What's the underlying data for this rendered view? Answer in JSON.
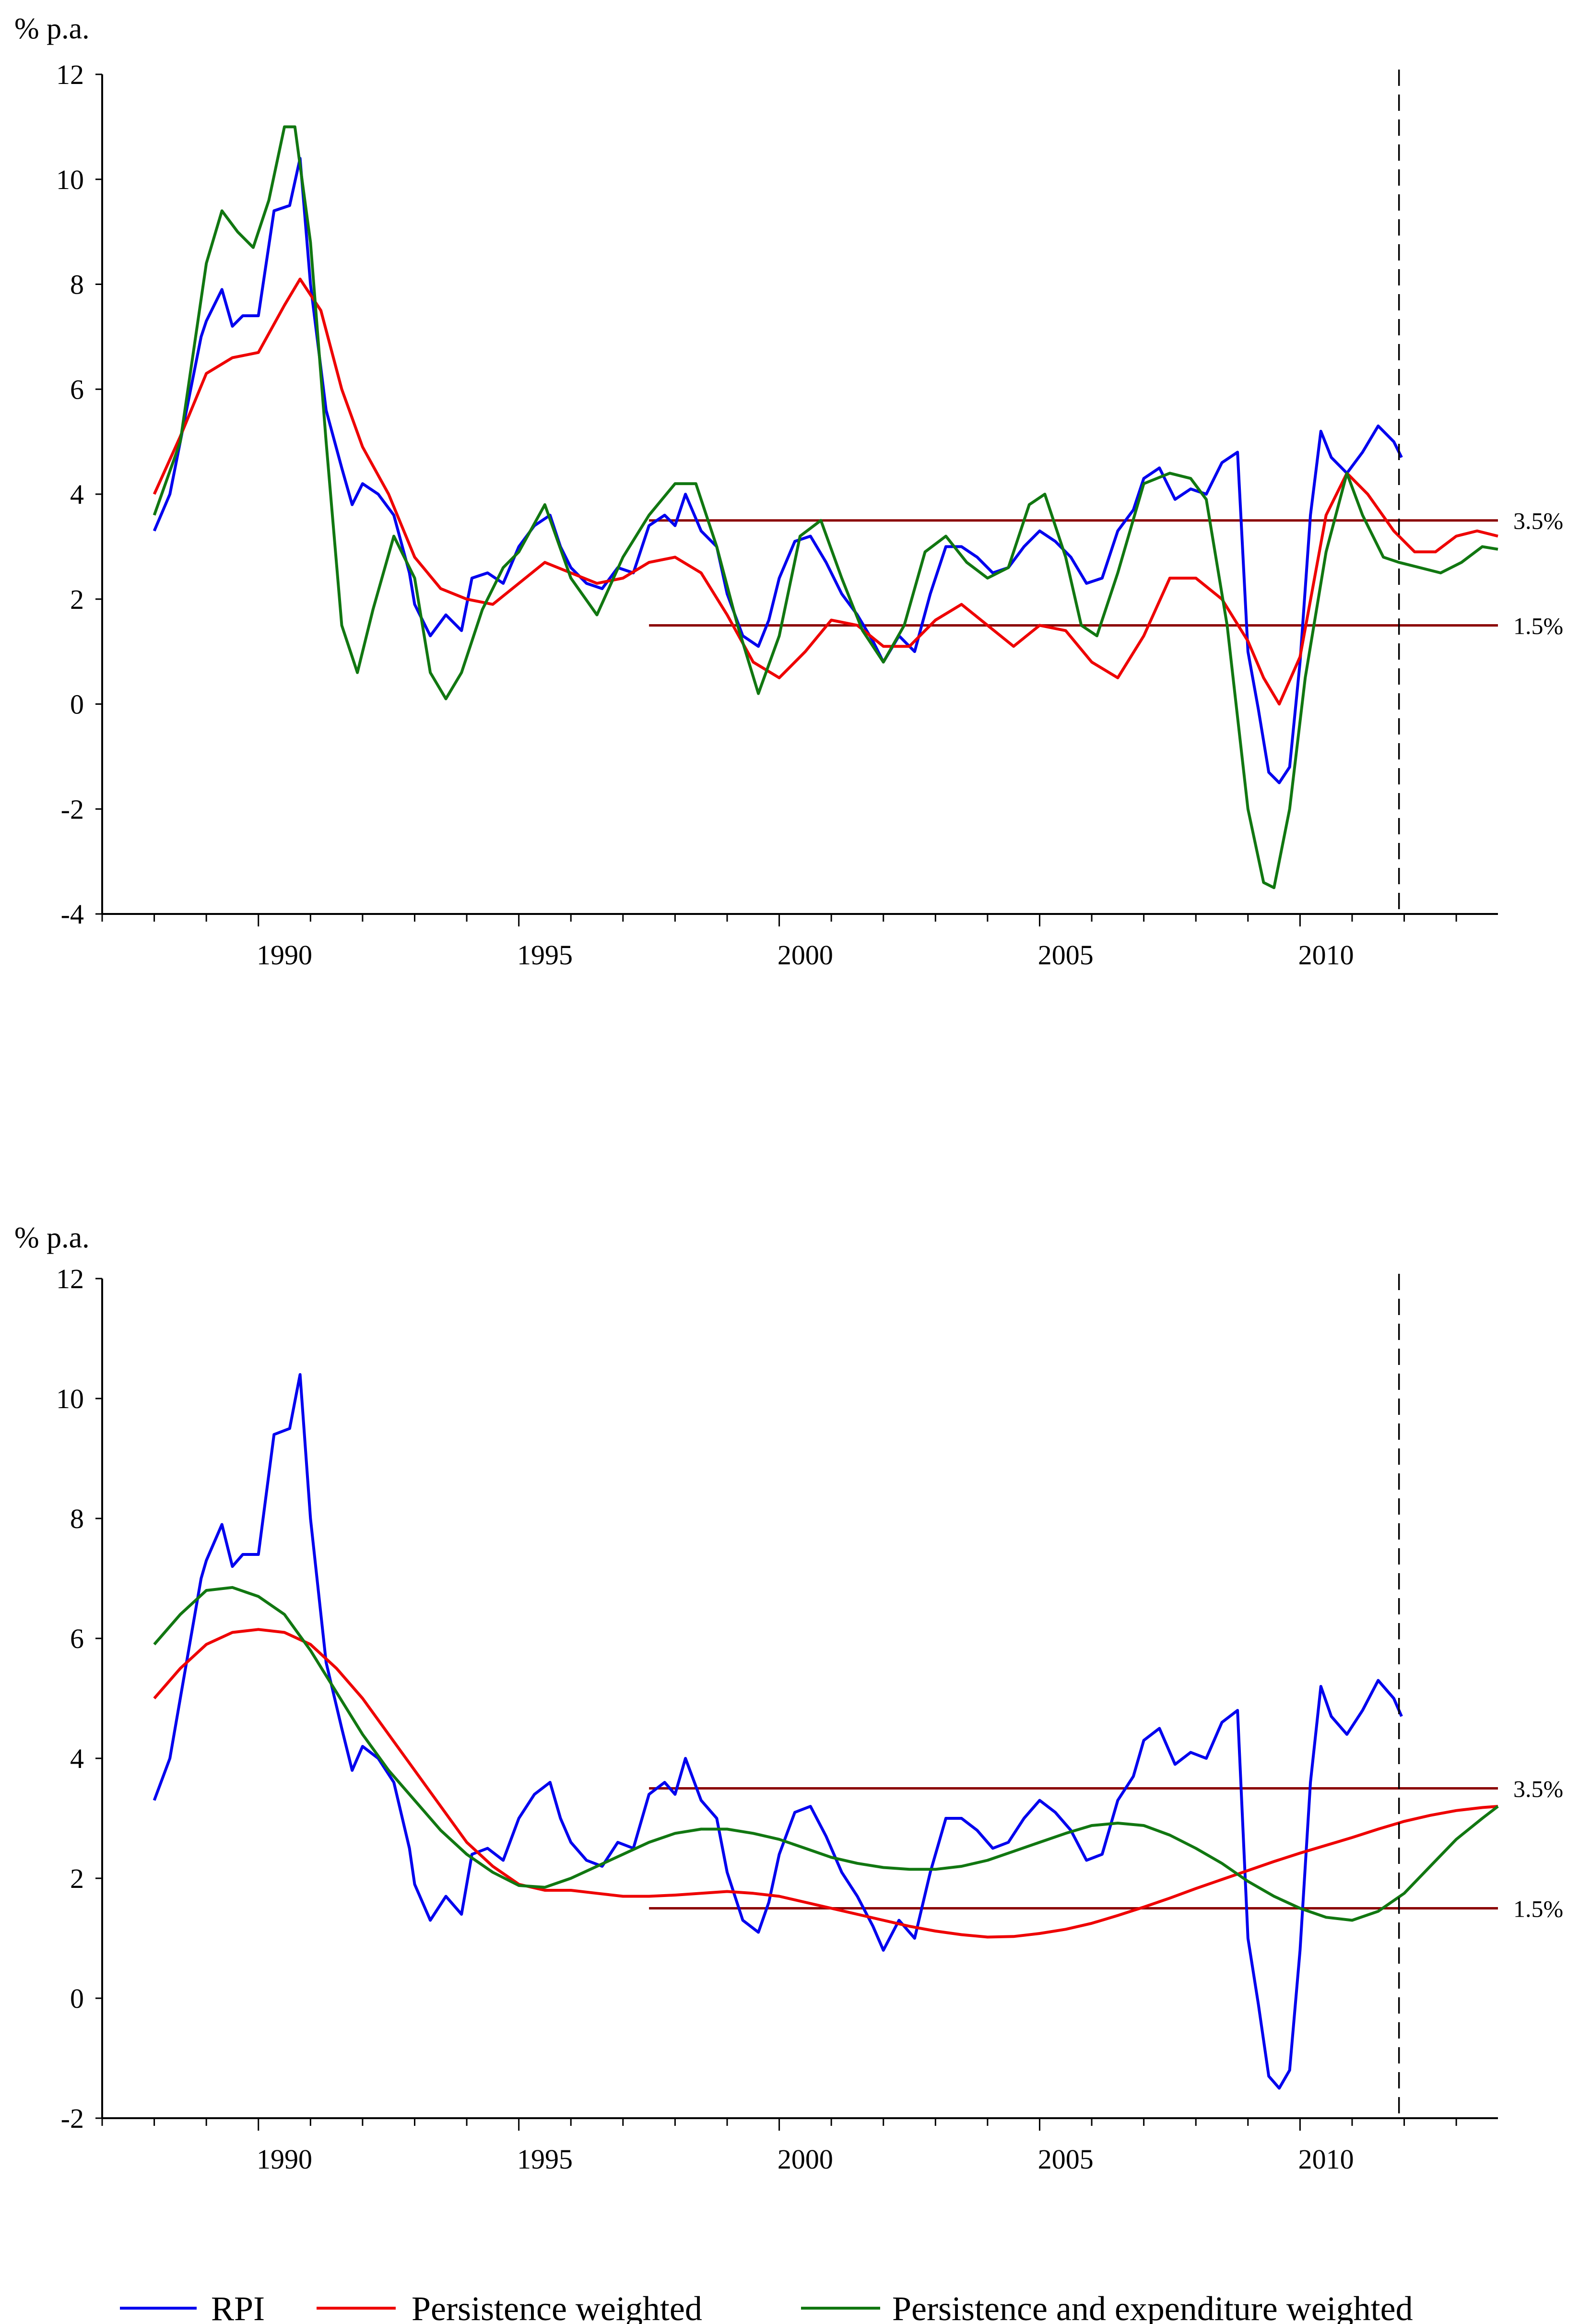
{
  "chart_data": [
    {
      "type": "line",
      "title": "",
      "ylabel": "% p.a.",
      "xlim": [
        1987.0,
        2013.8
      ],
      "ylim": [
        -4,
        12
      ],
      "yticks": [
        -4,
        -2,
        0,
        2,
        4,
        6,
        8,
        10,
        12
      ],
      "xticks": [
        1990,
        1995,
        2000,
        2005,
        2010
      ],
      "forecast_line_x": 2011.9,
      "bands": [
        {
          "label": "3.5%",
          "value": 3.5,
          "x_start": 1997.5,
          "x_end": 2013.8
        },
        {
          "label": "1.5%",
          "value": 1.5,
          "x_start": 1997.5,
          "x_end": 2013.8
        }
      ],
      "series": [
        {
          "name": "RPI",
          "color": "#0000ee",
          "x": [
            1988.0,
            1988.3,
            1988.6,
            1988.9,
            1989.0,
            1989.3,
            1989.5,
            1989.7,
            1990.0,
            1990.3,
            1990.6,
            1990.8,
            1991.0,
            1991.3,
            1991.6,
            1991.8,
            1992.0,
            1992.3,
            1992.6,
            1992.9,
            1993.0,
            1993.3,
            1993.6,
            1993.9,
            1994.1,
            1994.4,
            1994.7,
            1995.0,
            1995.3,
            1995.6,
            1995.8,
            1996.0,
            1996.3,
            1996.6,
            1996.9,
            1997.2,
            1997.5,
            1997.8,
            1998.0,
            1998.2,
            1998.5,
            1998.8,
            1999.0,
            1999.3,
            1999.6,
            1999.8,
            2000.0,
            2000.3,
            2000.6,
            2000.9,
            2001.2,
            2001.5,
            2001.8,
            2002.0,
            2002.3,
            2002.6,
            2002.9,
            2003.2,
            2003.5,
            2003.8,
            2004.1,
            2004.4,
            2004.7,
            2005.0,
            2005.3,
            2005.6,
            2005.9,
            2006.2,
            2006.5,
            2006.8,
            2007.0,
            2007.3,
            2007.6,
            2007.9,
            2008.2,
            2008.5,
            2008.8,
            2009.0,
            2009.2,
            2009.4,
            2009.6,
            2009.8,
            2010.0,
            2010.2,
            2010.4,
            2010.6,
            2010.9,
            2011.2,
            2011.5,
            2011.8,
            2011.95
          ],
          "y": [
            3.3,
            4.0,
            5.5,
            7.0,
            7.3,
            7.9,
            7.2,
            7.4,
            7.4,
            9.4,
            9.5,
            10.4,
            8.0,
            5.6,
            4.5,
            3.8,
            4.2,
            4.0,
            3.6,
            2.5,
            1.9,
            1.3,
            1.7,
            1.4,
            2.4,
            2.5,
            2.3,
            3.0,
            3.4,
            3.6,
            3.0,
            2.6,
            2.3,
            2.2,
            2.6,
            2.5,
            3.4,
            3.6,
            3.4,
            4.0,
            3.3,
            3.0,
            2.1,
            1.3,
            1.1,
            1.6,
            2.4,
            3.1,
            3.2,
            2.7,
            2.1,
            1.7,
            1.2,
            0.8,
            1.3,
            1.0,
            2.1,
            3.0,
            3.0,
            2.8,
            2.5,
            2.6,
            3.0,
            3.3,
            3.1,
            2.8,
            2.3,
            2.4,
            3.3,
            3.7,
            4.3,
            4.5,
            3.9,
            4.1,
            4.0,
            4.6,
            4.8,
            1.0,
            -0.1,
            -1.3,
            -1.5,
            -1.2,
            0.8,
            3.6,
            5.2,
            4.7,
            4.4,
            4.8,
            5.3,
            5.0,
            4.7
          ]
        },
        {
          "name": "Persistence weighted",
          "color": "#ee0000",
          "x": [
            1988.0,
            1988.5,
            1989.0,
            1989.5,
            1990.0,
            1990.5,
            1990.8,
            1991.2,
            1991.6,
            1992.0,
            1992.5,
            1993.0,
            1993.5,
            1994.0,
            1994.5,
            1995.0,
            1995.5,
            1996.0,
            1996.5,
            1997.0,
            1997.5,
            1998.0,
            1998.5,
            1999.0,
            1999.5,
            2000.0,
            2000.5,
            2001.0,
            2001.5,
            2002.0,
            2002.5,
            2003.0,
            2003.5,
            2004.0,
            2004.5,
            2005.0,
            2005.5,
            2006.0,
            2006.5,
            2007.0,
            2007.5,
            2008.0,
            2008.5,
            2009.0,
            2009.3,
            2009.6,
            2010.0,
            2010.5,
            2010.9,
            2011.3,
            2011.8,
            2012.2,
            2012.6,
            2013.0,
            2013.4,
            2013.8
          ],
          "y": [
            4.0,
            5.1,
            6.3,
            6.6,
            6.7,
            7.6,
            8.1,
            7.5,
            6.0,
            4.9,
            4.0,
            2.8,
            2.2,
            2.0,
            1.9,
            2.3,
            2.7,
            2.5,
            2.3,
            2.4,
            2.7,
            2.8,
            2.5,
            1.7,
            0.8,
            0.5,
            1.0,
            1.6,
            1.5,
            1.1,
            1.1,
            1.6,
            1.9,
            1.5,
            1.1,
            1.5,
            1.4,
            0.8,
            0.5,
            1.3,
            2.4,
            2.4,
            2.0,
            1.2,
            0.5,
            0.0,
            0.9,
            3.6,
            4.4,
            4.0,
            3.3,
            2.9,
            2.9,
            3.2,
            3.3,
            3.2
          ]
        },
        {
          "name": "Persistence and expenditure weighted",
          "color": "#117711",
          "x": [
            1988.0,
            1988.5,
            1989.0,
            1989.3,
            1989.6,
            1989.9,
            1990.2,
            1990.5,
            1990.7,
            1991.0,
            1991.3,
            1991.6,
            1991.9,
            1992.2,
            1992.6,
            1993.0,
            1993.3,
            1993.6,
            1993.9,
            1994.3,
            1994.7,
            1995.0,
            1995.5,
            1996.0,
            1996.5,
            1997.0,
            1997.5,
            1998.0,
            1998.4,
            1998.8,
            1999.2,
            1999.6,
            2000.0,
            2000.4,
            2000.8,
            2001.2,
            2001.6,
            2002.0,
            2002.4,
            2002.8,
            2003.2,
            2003.6,
            2004.0,
            2004.4,
            2004.8,
            2005.1,
            2005.5,
            2005.8,
            2006.1,
            2006.5,
            2007.0,
            2007.5,
            2007.9,
            2008.2,
            2008.6,
            2009.0,
            2009.3,
            2009.5,
            2009.8,
            2010.1,
            2010.5,
            2010.9,
            2011.2,
            2011.6,
            2011.9,
            2012.3,
            2012.7,
            2013.1,
            2013.5,
            2013.8
          ],
          "y": [
            3.6,
            5.0,
            8.4,
            9.4,
            9.0,
            8.7,
            9.6,
            11.0,
            11.0,
            8.8,
            5.0,
            1.5,
            0.6,
            1.8,
            3.2,
            2.4,
            0.6,
            0.1,
            0.6,
            1.8,
            2.6,
            2.9,
            3.8,
            2.4,
            1.7,
            2.8,
            3.6,
            4.2,
            4.2,
            3.0,
            1.5,
            0.2,
            1.3,
            3.2,
            3.5,
            2.4,
            1.4,
            0.8,
            1.5,
            2.9,
            3.2,
            2.7,
            2.4,
            2.6,
            3.8,
            4.0,
            2.8,
            1.5,
            1.3,
            2.5,
            4.2,
            4.4,
            4.3,
            3.9,
            1.5,
            -2.0,
            -3.4,
            -3.5,
            -2.0,
            0.5,
            2.9,
            4.4,
            3.6,
            2.8,
            2.7,
            2.6,
            2.5,
            2.7,
            3.0,
            2.95
          ]
        }
      ]
    },
    {
      "type": "line",
      "title": "",
      "ylabel": "% p.a.",
      "xlim": [
        1987.0,
        2013.8
      ],
      "ylim": [
        -2,
        12
      ],
      "yticks": [
        -2,
        0,
        2,
        4,
        6,
        8,
        10,
        12
      ],
      "xticks": [
        1990,
        1995,
        2000,
        2005,
        2010
      ],
      "forecast_line_x": 2011.9,
      "bands": [
        {
          "label": "3.5%",
          "value": 3.5,
          "x_start": 1997.5,
          "x_end": 2013.8
        },
        {
          "label": "1.5%",
          "value": 1.5,
          "x_start": 1997.5,
          "x_end": 2013.8
        }
      ],
      "series": [
        {
          "name": "RPI",
          "color": "#0000ee",
          "x": [
            1988.0,
            1988.3,
            1988.6,
            1988.9,
            1989.0,
            1989.3,
            1989.5,
            1989.7,
            1990.0,
            1990.3,
            1990.6,
            1990.8,
            1991.0,
            1991.3,
            1991.6,
            1991.8,
            1992.0,
            1992.3,
            1992.6,
            1992.9,
            1993.0,
            1993.3,
            1993.6,
            1993.9,
            1994.1,
            1994.4,
            1994.7,
            1995.0,
            1995.3,
            1995.6,
            1995.8,
            1996.0,
            1996.3,
            1996.6,
            1996.9,
            1997.2,
            1997.5,
            1997.8,
            1998.0,
            1998.2,
            1998.5,
            1998.8,
            1999.0,
            1999.3,
            1999.6,
            1999.8,
            2000.0,
            2000.3,
            2000.6,
            2000.9,
            2001.2,
            2001.5,
            2001.8,
            2002.0,
            2002.3,
            2002.6,
            2002.9,
            2003.2,
            2003.5,
            2003.8,
            2004.1,
            2004.4,
            2004.7,
            2005.0,
            2005.3,
            2005.6,
            2005.9,
            2006.2,
            2006.5,
            2006.8,
            2007.0,
            2007.3,
            2007.6,
            2007.9,
            2008.2,
            2008.5,
            2008.8,
            2009.0,
            2009.2,
            2009.4,
            2009.6,
            2009.8,
            2010.0,
            2010.2,
            2010.4,
            2010.6,
            2010.9,
            2011.2,
            2011.5,
            2011.8,
            2011.95
          ],
          "y": [
            3.3,
            4.0,
            5.5,
            7.0,
            7.3,
            7.9,
            7.2,
            7.4,
            7.4,
            9.4,
            9.5,
            10.4,
            8.0,
            5.6,
            4.5,
            3.8,
            4.2,
            4.0,
            3.6,
            2.5,
            1.9,
            1.3,
            1.7,
            1.4,
            2.4,
            2.5,
            2.3,
            3.0,
            3.4,
            3.6,
            3.0,
            2.6,
            2.3,
            2.2,
            2.6,
            2.5,
            3.4,
            3.6,
            3.4,
            4.0,
            3.3,
            3.0,
            2.1,
            1.3,
            1.1,
            1.6,
            2.4,
            3.1,
            3.2,
            2.7,
            2.1,
            1.7,
            1.2,
            0.8,
            1.3,
            1.0,
            2.1,
            3.0,
            3.0,
            2.8,
            2.5,
            2.6,
            3.0,
            3.3,
            3.1,
            2.8,
            2.3,
            2.4,
            3.3,
            3.7,
            4.3,
            4.5,
            3.9,
            4.1,
            4.0,
            4.6,
            4.8,
            1.0,
            -0.1,
            -1.3,
            -1.5,
            -1.2,
            0.8,
            3.6,
            5.2,
            4.7,
            4.4,
            4.8,
            5.3,
            5.0,
            4.7
          ]
        },
        {
          "name": "Persistence weighted",
          "color": "#ee0000",
          "x": [
            1988.0,
            1988.5,
            1989.0,
            1989.5,
            1990.0,
            1990.5,
            1991.0,
            1991.5,
            1992.0,
            1992.5,
            1993.0,
            1993.5,
            1994.0,
            1994.5,
            1995.0,
            1995.5,
            1996.0,
            1996.5,
            1997.0,
            1997.5,
            1998.0,
            1998.5,
            1999.0,
            1999.5,
            2000.0,
            2000.5,
            2001.0,
            2001.5,
            2002.0,
            2002.5,
            2003.0,
            2003.5,
            2004.0,
            2004.5,
            2005.0,
            2005.5,
            2006.0,
            2006.5,
            2007.0,
            2007.5,
            2008.0,
            2008.5,
            2009.0,
            2009.5,
            2010.0,
            2010.5,
            2011.0,
            2011.5,
            2012.0,
            2012.5,
            2013.0,
            2013.5,
            2013.8
          ],
          "y": [
            5.0,
            5.5,
            5.9,
            6.1,
            6.15,
            6.1,
            5.9,
            5.5,
            5.0,
            4.4,
            3.8,
            3.2,
            2.6,
            2.2,
            1.9,
            1.8,
            1.8,
            1.75,
            1.7,
            1.7,
            1.72,
            1.75,
            1.78,
            1.75,
            1.7,
            1.6,
            1.5,
            1.4,
            1.3,
            1.2,
            1.12,
            1.06,
            1.02,
            1.03,
            1.08,
            1.15,
            1.25,
            1.38,
            1.52,
            1.67,
            1.83,
            1.98,
            2.13,
            2.28,
            2.42,
            2.55,
            2.68,
            2.82,
            2.95,
            3.05,
            3.13,
            3.18,
            3.2
          ]
        },
        {
          "name": "Persistence and expenditure weighted",
          "color": "#117711",
          "x": [
            1988.0,
            1988.5,
            1989.0,
            1989.5,
            1990.0,
            1990.5,
            1991.0,
            1991.5,
            1992.0,
            1992.5,
            1993.0,
            1993.5,
            1994.0,
            1994.5,
            1995.0,
            1995.5,
            1996.0,
            1996.5,
            1997.0,
            1997.5,
            1998.0,
            1998.5,
            1999.0,
            1999.5,
            2000.0,
            2000.5,
            2001.0,
            2001.5,
            2002.0,
            2002.5,
            2003.0,
            2003.5,
            2004.0,
            2004.5,
            2005.0,
            2005.5,
            2006.0,
            2006.5,
            2007.0,
            2007.5,
            2008.0,
            2008.5,
            2009.0,
            2009.5,
            2010.0,
            2010.5,
            2011.0,
            2011.5,
            2012.0,
            2012.5,
            2013.0,
            2013.5,
            2013.8
          ],
          "y": [
            5.9,
            6.4,
            6.8,
            6.85,
            6.7,
            6.4,
            5.8,
            5.1,
            4.4,
            3.8,
            3.3,
            2.8,
            2.4,
            2.1,
            1.88,
            1.85,
            2.0,
            2.2,
            2.4,
            2.6,
            2.75,
            2.82,
            2.82,
            2.75,
            2.65,
            2.5,
            2.35,
            2.25,
            2.18,
            2.15,
            2.15,
            2.2,
            2.3,
            2.45,
            2.6,
            2.75,
            2.88,
            2.92,
            2.88,
            2.72,
            2.5,
            2.25,
            1.95,
            1.7,
            1.5,
            1.35,
            1.3,
            1.45,
            1.75,
            2.2,
            2.65,
            3.0,
            3.2
          ]
        }
      ]
    }
  ],
  "legend": [
    {
      "label": "RPI",
      "color": "#0000ee"
    },
    {
      "label": "Persistence weighted",
      "color": "#ee0000"
    },
    {
      "label": "Persistence and expenditure weighted",
      "color": "#117711"
    }
  ]
}
